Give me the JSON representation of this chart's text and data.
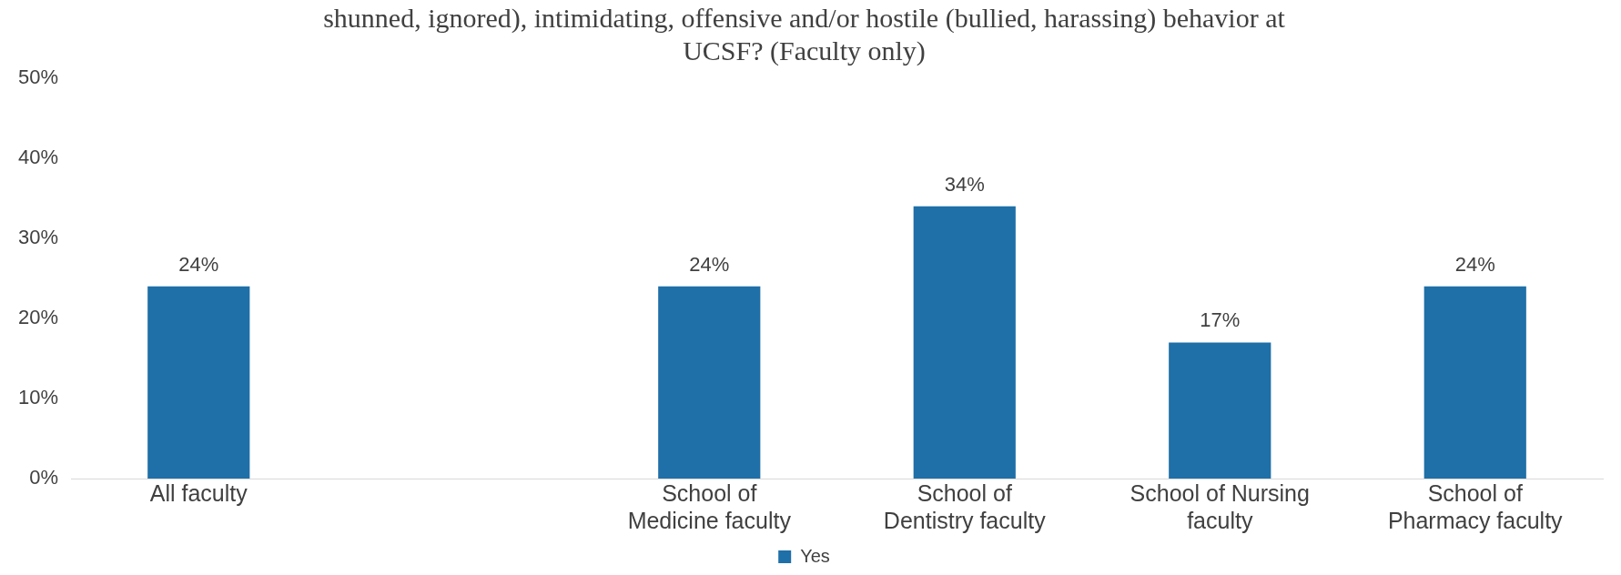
{
  "chart_data": {
    "type": "bar",
    "title": "shunned, ignored), intimidating, offensive and/or hostile (bullied, harassing) behavior at UCSF? (Faculty only)",
    "categories": [
      "All faculty",
      null,
      "School of Medicine faculty",
      "School of Dentistry faculty",
      "School of Nursing faculty",
      "School of Pharmacy faculty"
    ],
    "series": [
      {
        "name": "Yes",
        "color": "#1f6fa8",
        "values": [
          24,
          null,
          24,
          34,
          17,
          24
        ],
        "value_labels": [
          "24%",
          null,
          "24%",
          "34%",
          "17%",
          "24%"
        ]
      }
    ],
    "ylim": [
      0,
      50
    ],
    "yticks": [
      {
        "value": 0,
        "label": "0%"
      },
      {
        "value": 10,
        "label": "10%"
      },
      {
        "value": 20,
        "label": "20%"
      },
      {
        "value": 30,
        "label": "30%"
      },
      {
        "value": 40,
        "label": "40%"
      },
      {
        "value": 50,
        "label": "50%"
      }
    ],
    "grid": false,
    "legend": "bottom"
  }
}
